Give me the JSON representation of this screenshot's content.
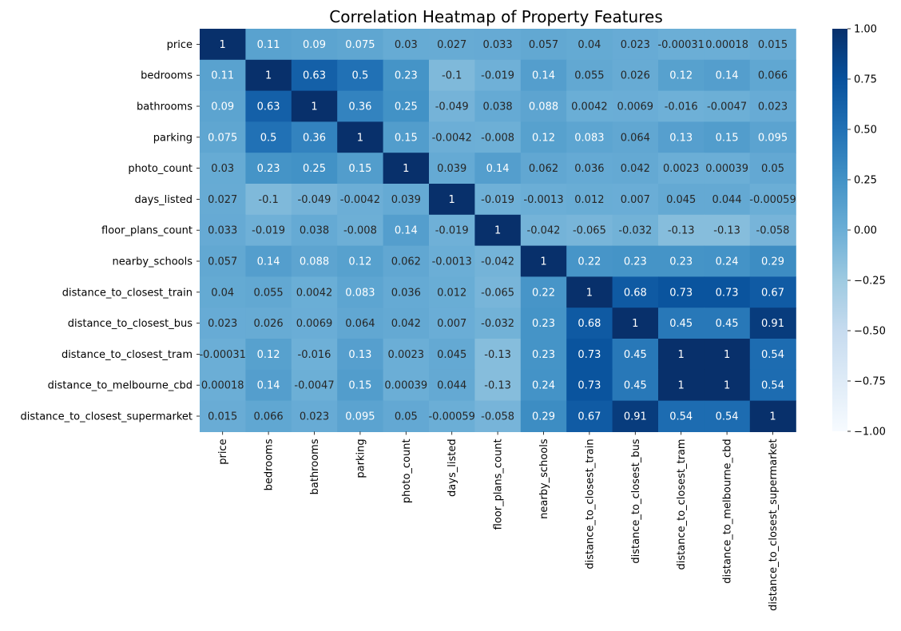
{
  "chart_data": {
    "type": "heatmap",
    "title": "Correlation Heatmap of Property Features",
    "rows": [
      "price",
      "bedrooms",
      "bathrooms",
      "parking",
      "photo_count",
      "days_listed",
      "floor_plans_count",
      "nearby_schools",
      "distance_to_closest_train",
      "distance_to_closest_bus",
      "distance_to_closest_tram",
      "distance_to_melbourne_cbd",
      "distance_to_closest_supermarket"
    ],
    "columns": [
      "price",
      "bedrooms",
      "bathrooms",
      "parking",
      "photo_count",
      "days_listed",
      "floor_plans_count",
      "nearby_schools",
      "distance_to_closest_train",
      "distance_to_closest_bus",
      "distance_to_closest_tram",
      "distance_to_melbourne_cbd",
      "distance_to_closest_supermarket"
    ],
    "values": [
      [
        1,
        0.11,
        0.09,
        0.075,
        0.03,
        0.027,
        0.033,
        0.057,
        0.04,
        0.023,
        -0.00031,
        0.00018,
        0.015
      ],
      [
        0.11,
        1,
        0.63,
        0.5,
        0.23,
        -0.1,
        -0.019,
        0.14,
        0.055,
        0.026,
        0.12,
        0.14,
        0.066
      ],
      [
        0.09,
        0.63,
        1,
        0.36,
        0.25,
        -0.049,
        0.038,
        0.088,
        0.0042,
        0.0069,
        -0.016,
        -0.0047,
        0.023
      ],
      [
        0.075,
        0.5,
        0.36,
        1,
        0.15,
        -0.0042,
        -0.008,
        0.12,
        0.083,
        0.064,
        0.13,
        0.15,
        0.095
      ],
      [
        0.03,
        0.23,
        0.25,
        0.15,
        1,
        0.039,
        0.14,
        0.062,
        0.036,
        0.042,
        0.0023,
        0.00039,
        0.05
      ],
      [
        0.027,
        -0.1,
        -0.049,
        -0.0042,
        0.039,
        1,
        -0.019,
        -0.0013,
        0.012,
        0.007,
        0.045,
        0.044,
        -0.00059
      ],
      [
        0.033,
        -0.019,
        0.038,
        -0.008,
        0.14,
        -0.019,
        1,
        -0.042,
        -0.065,
        -0.032,
        -0.13,
        -0.13,
        -0.058
      ],
      [
        0.057,
        0.14,
        0.088,
        0.12,
        0.062,
        -0.0013,
        -0.042,
        1,
        0.22,
        0.23,
        0.23,
        0.24,
        0.29
      ],
      [
        0.04,
        0.055,
        0.0042,
        0.083,
        0.036,
        0.012,
        -0.065,
        0.22,
        1,
        0.68,
        0.73,
        0.73,
        0.67
      ],
      [
        0.023,
        0.026,
        0.0069,
        0.064,
        0.042,
        0.007,
        -0.032,
        0.23,
        0.68,
        1,
        0.45,
        0.45,
        0.91
      ],
      [
        -0.00031,
        0.12,
        -0.016,
        0.13,
        0.0023,
        0.045,
        -0.13,
        0.23,
        0.73,
        0.45,
        1,
        1,
        0.54
      ],
      [
        0.00018,
        0.14,
        -0.0047,
        0.15,
        0.00039,
        0.044,
        -0.13,
        0.24,
        0.73,
        0.45,
        1,
        1,
        0.54
      ],
      [
        0.015,
        0.066,
        0.023,
        0.095,
        0.05,
        -0.00059,
        -0.058,
        0.29,
        0.67,
        0.91,
        0.54,
        0.54,
        1
      ]
    ],
    "colorbar": {
      "min": -1.0,
      "max": 1.0,
      "ticks": [
        "1.00",
        "0.75",
        "0.50",
        "0.25",
        "0.00",
        "−0.25",
        "−0.50",
        "−0.75",
        "−1.00"
      ],
      "tick_values": [
        1.0,
        0.75,
        0.5,
        0.25,
        0.0,
        -0.25,
        -0.5,
        -0.75,
        -1.0
      ],
      "colormap": "Blues"
    },
    "colors": {
      "low": "#f7fbff",
      "high": "#08306b"
    }
  }
}
